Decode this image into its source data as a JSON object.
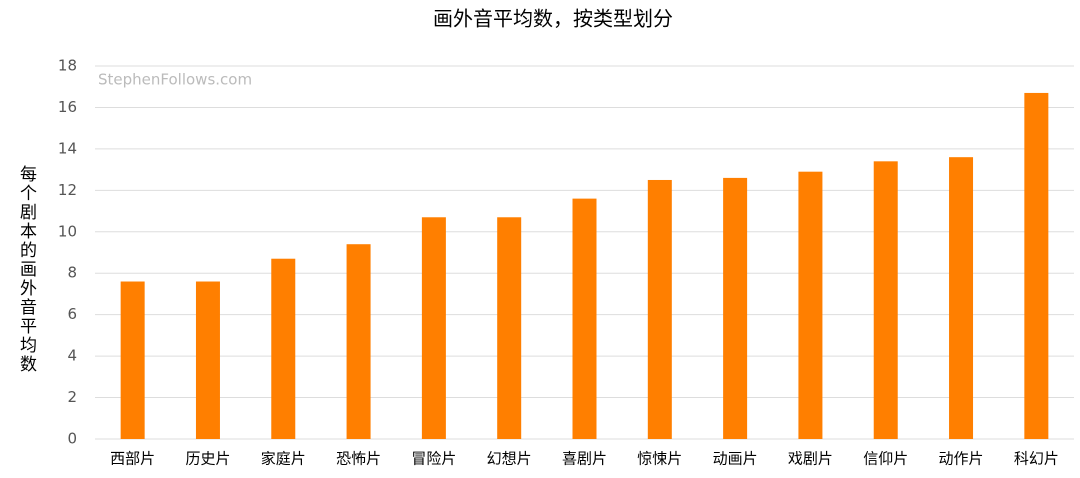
{
  "chart_data": {
    "type": "bar",
    "title": "画外音平均数，按类型划分",
    "y_label": "每个剧本的画外音平均数",
    "watermark": "StephenFollows.com",
    "categories": [
      "西部片",
      "历史片",
      "家庭片",
      "恐怖片",
      "冒险片",
      "幻想片",
      "喜剧片",
      "惊悚片",
      "动画片",
      "戏剧片",
      "信仰片",
      "动作片",
      "科幻片"
    ],
    "values": [
      7.6,
      7.6,
      8.7,
      9.4,
      10.7,
      10.7,
      11.6,
      12.5,
      12.6,
      12.9,
      13.4,
      13.6,
      16.7
    ],
    "color": "#ff7f00",
    "ylim": [
      0,
      18
    ],
    "yticks": [
      0,
      2,
      4,
      6,
      8,
      10,
      12,
      14,
      16,
      18
    ],
    "grid": true
  }
}
